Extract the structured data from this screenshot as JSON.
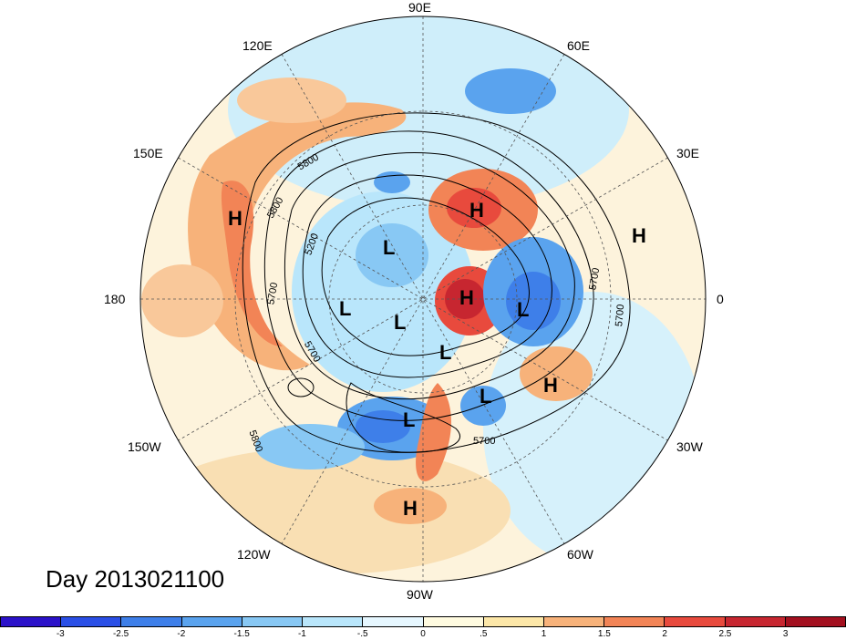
{
  "title": "Day 2013021100",
  "longitudes": [
    {
      "label": "90E",
      "angle": 90
    },
    {
      "label": "60E",
      "angle": 60
    },
    {
      "label": "30E",
      "angle": 30
    },
    {
      "label": "0",
      "angle": 0
    },
    {
      "label": "30W",
      "angle": -30
    },
    {
      "label": "60W",
      "angle": -60
    },
    {
      "label": "90W",
      "angle": -90
    },
    {
      "label": "120W",
      "angle": -120
    },
    {
      "label": "150W",
      "angle": -150
    },
    {
      "label": "180",
      "angle": 180
    },
    {
      "label": "150E",
      "angle": 150
    },
    {
      "label": "120E",
      "angle": 120
    }
  ],
  "pressure_centers": [
    {
      "type": "H",
      "name": "high-east-siberia"
    },
    {
      "type": "H",
      "name": "high-scandinavia-north"
    },
    {
      "type": "L",
      "name": "low-arctic-siberia"
    },
    {
      "type": "H",
      "name": "high-europe"
    },
    {
      "type": "L",
      "name": "low-arctic-west"
    },
    {
      "type": "L",
      "name": "low-arctic-center"
    },
    {
      "type": "H",
      "name": "high-greenland"
    },
    {
      "type": "L",
      "name": "low-north-atlantic"
    },
    {
      "type": "L",
      "name": "low-canada"
    },
    {
      "type": "L",
      "name": "low-labrador"
    },
    {
      "type": "H",
      "name": "high-atlantic"
    },
    {
      "type": "L",
      "name": "low-north-america"
    },
    {
      "type": "H",
      "name": "high-central-america"
    }
  ],
  "contour_labels": [
    "5800",
    "5200",
    "5700",
    "5800",
    "5700",
    "5700",
    "5800",
    "5700",
    "5700"
  ],
  "colorbar": {
    "ticks": [
      "-3",
      "-2.5",
      "-2",
      "-1.5",
      "-1",
      "-.5",
      "0",
      ".5",
      "1",
      "1.5",
      "2",
      "2.5",
      "3"
    ],
    "colors": [
      "#2b12c9",
      "#2a4fe6",
      "#3e7fe9",
      "#5aa3ee",
      "#88c8f4",
      "#b9e6fb",
      "#e6f7ff",
      "#fffbe0",
      "#fce7a8",
      "#f7b27a",
      "#f28456",
      "#e84a3d",
      "#c72630",
      "#a3101f"
    ]
  }
}
